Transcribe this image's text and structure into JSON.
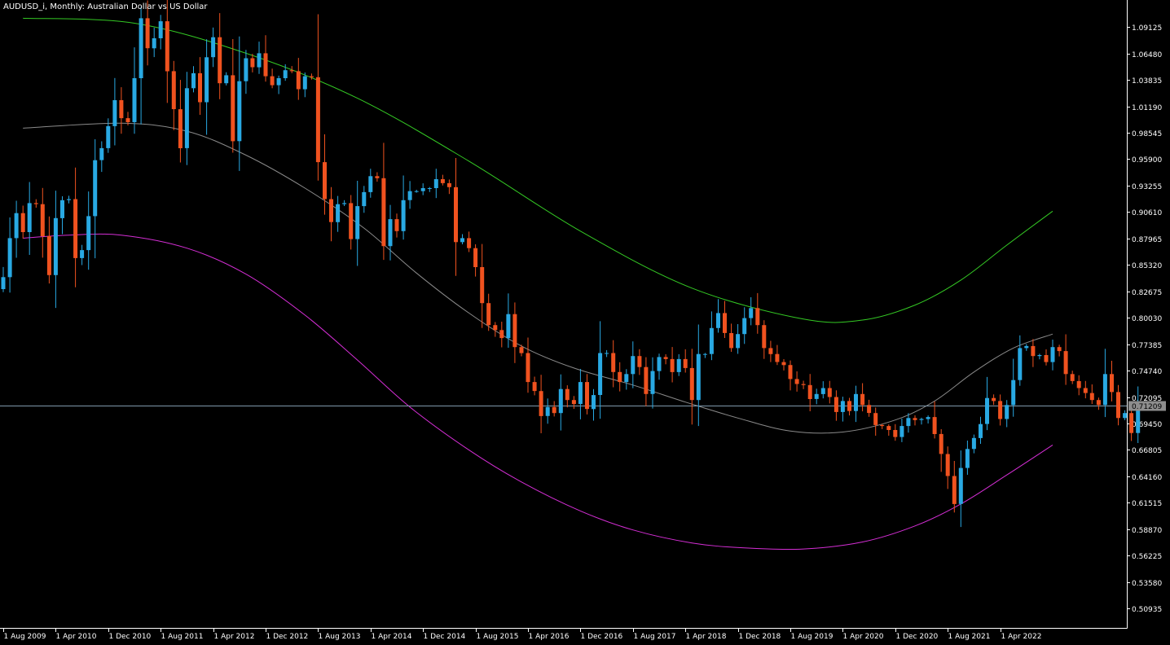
{
  "chart_title": "AUDUSD_i, Monthly:  Australian Dollar vs US Dollar",
  "colors": {
    "background": "#000000",
    "axis": "#ffffff",
    "bull_candle": "#29a9e3",
    "bear_candle": "#f0521f",
    "upper_band": "#34c924",
    "middle_band": "#8a8a8a",
    "lower_band": "#d42ed4",
    "price_line": "#7f98ab",
    "price_tag_bg": "#8d8d8d"
  },
  "chart_data": {
    "type": "candlestick",
    "symbol": "AUDUSD_i",
    "timeframe": "Monthly",
    "ylim": [
      0.49,
      1.115
    ],
    "price_ticks": [
      "1.09125",
      "1.06480",
      "1.03835",
      "1.01190",
      "0.98545",
      "0.95900",
      "0.93255",
      "0.90610",
      "0.87965",
      "0.85320",
      "0.82675",
      "0.80030",
      "0.77385",
      "0.74740",
      "0.72095",
      "0.69450",
      "0.66805",
      "0.64160",
      "0.61515",
      "0.58870",
      "0.56225",
      "0.53580",
      "0.50935"
    ],
    "current_price": "0.71209",
    "date_ticks": [
      {
        "i": 0,
        "label": "1 Aug 2009"
      },
      {
        "i": 8,
        "label": "1 Apr 2010"
      },
      {
        "i": 16,
        "label": "1 Dec 2010"
      },
      {
        "i": 24,
        "label": "1 Aug 2011"
      },
      {
        "i": 32,
        "label": "1 Apr 2012"
      },
      {
        "i": 40,
        "label": "1 Dec 2012"
      },
      {
        "i": 48,
        "label": "1 Aug 2013"
      },
      {
        "i": 56,
        "label": "1 Apr 2014"
      },
      {
        "i": 64,
        "label": "1 Dec 2014"
      },
      {
        "i": 72,
        "label": "1 Aug 2015"
      },
      {
        "i": 80,
        "label": "1 Apr 2016"
      },
      {
        "i": 88,
        "label": "1 Dec 2016"
      },
      {
        "i": 96,
        "label": "1 Aug 2017"
      },
      {
        "i": 104,
        "label": "1 Apr 2018"
      },
      {
        "i": 112,
        "label": "1 Dec 2018"
      },
      {
        "i": 120,
        "label": "1 Aug 2019"
      },
      {
        "i": 128,
        "label": "1 Apr 2020"
      },
      {
        "i": 136,
        "label": "1 Dec 2020"
      },
      {
        "i": 144,
        "label": "1 Aug 2021"
      },
      {
        "i": 152,
        "label": "1 Apr 2022"
      }
    ],
    "closes": [
      0.841,
      0.88,
      0.905,
      0.886,
      0.915,
      0.914,
      0.882,
      0.843,
      0.9,
      0.918,
      0.919,
      0.86,
      0.868,
      0.902,
      0.958,
      0.97,
      0.992,
      1.018,
      1.0,
      0.996,
      1.04,
      1.1,
      1.07,
      1.08,
      1.097,
      1.047,
      1.009,
      0.97,
      1.03,
      1.045,
      1.016,
      1.061,
      1.081,
      1.035,
      1.043,
      0.977,
      1.037,
      1.06,
      1.051,
      1.065,
      1.042,
      1.033,
      1.04,
      1.048,
      1.047,
      1.029,
      1.042,
      1.041,
      0.956,
      0.919,
      0.896,
      0.914,
      0.915,
      0.879,
      0.912,
      0.926,
      0.942,
      0.94,
      0.872,
      0.899,
      0.887,
      0.918,
      0.927,
      0.927,
      0.93,
      0.93,
      0.939,
      0.935,
      0.931,
      0.876,
      0.88,
      0.87,
      0.851,
      0.815,
      0.793,
      0.788,
      0.78,
      0.804,
      0.771,
      0.765,
      0.736,
      0.727,
      0.702,
      0.711,
      0.705,
      0.729,
      0.718,
      0.714,
      0.736,
      0.709,
      0.723,
      0.765,
      0.765,
      0.746,
      0.736,
      0.744,
      0.762,
      0.751,
      0.724,
      0.747,
      0.761,
      0.759,
      0.746,
      0.759,
      0.75,
      0.718,
      0.764,
      0.764,
      0.79,
      0.805,
      0.785,
      0.77,
      0.784,
      0.8,
      0.81,
      0.793,
      0.77,
      0.764,
      0.756,
      0.753,
      0.739,
      0.734,
      0.733,
      0.719,
      0.724,
      0.73,
      0.721,
      0.706,
      0.717,
      0.707,
      0.724,
      0.713,
      0.705,
      0.693,
      0.692,
      0.688,
      0.681,
      0.692,
      0.7,
      0.698,
      0.699,
      0.701,
      0.684,
      0.664,
      0.642,
      0.614,
      0.65,
      0.669,
      0.68,
      0.694,
      0.72,
      0.717,
      0.699,
      0.713,
      0.738,
      0.77,
      0.772,
      0.762,
      0.763,
      0.756,
      0.771,
      0.767,
      0.744,
      0.737,
      0.73,
      0.725,
      0.718,
      0.713,
      0.744,
      0.726,
      0.7,
      0.705,
      0.685,
      0.712
    ],
    "bands": {
      "upper": [
        {
          "i": 3,
          "v": 1.1
        },
        {
          "i": 20,
          "v": 1.095
        },
        {
          "i": 37,
          "v": 1.065
        },
        {
          "i": 54,
          "v": 1.02
        },
        {
          "i": 71,
          "v": 0.957
        },
        {
          "i": 88,
          "v": 0.887
        },
        {
          "i": 105,
          "v": 0.83
        },
        {
          "i": 122,
          "v": 0.799
        },
        {
          "i": 131,
          "v": 0.798
        },
        {
          "i": 139,
          "v": 0.813
        },
        {
          "i": 146,
          "v": 0.838
        },
        {
          "i": 153,
          "v": 0.873
        },
        {
          "i": 160,
          "v": 0.907
        }
      ],
      "middle": [
        {
          "i": 3,
          "v": 0.99
        },
        {
          "i": 18,
          "v": 0.995
        },
        {
          "i": 28,
          "v": 0.987
        },
        {
          "i": 37,
          "v": 0.963
        },
        {
          "i": 46,
          "v": 0.93
        },
        {
          "i": 55,
          "v": 0.89
        },
        {
          "i": 63,
          "v": 0.845
        },
        {
          "i": 71,
          "v": 0.805
        },
        {
          "i": 79,
          "v": 0.772
        },
        {
          "i": 87,
          "v": 0.75
        },
        {
          "i": 96,
          "v": 0.733
        },
        {
          "i": 104,
          "v": 0.716
        },
        {
          "i": 112,
          "v": 0.7
        },
        {
          "i": 120,
          "v": 0.687
        },
        {
          "i": 128,
          "v": 0.686
        },
        {
          "i": 136,
          "v": 0.698
        },
        {
          "i": 142,
          "v": 0.717
        },
        {
          "i": 148,
          "v": 0.746
        },
        {
          "i": 154,
          "v": 0.77
        },
        {
          "i": 160,
          "v": 0.784
        }
      ],
      "lower": [
        {
          "i": 3,
          "v": 0.88
        },
        {
          "i": 10,
          "v": 0.883
        },
        {
          "i": 18,
          "v": 0.883
        },
        {
          "i": 28,
          "v": 0.87
        },
        {
          "i": 37,
          "v": 0.844
        },
        {
          "i": 46,
          "v": 0.803
        },
        {
          "i": 54,
          "v": 0.758
        },
        {
          "i": 62,
          "v": 0.711
        },
        {
          "i": 71,
          "v": 0.668
        },
        {
          "i": 79,
          "v": 0.636
        },
        {
          "i": 88,
          "v": 0.607
        },
        {
          "i": 96,
          "v": 0.588
        },
        {
          "i": 105,
          "v": 0.575
        },
        {
          "i": 113,
          "v": 0.57
        },
        {
          "i": 122,
          "v": 0.569
        },
        {
          "i": 131,
          "v": 0.576
        },
        {
          "i": 139,
          "v": 0.592
        },
        {
          "i": 146,
          "v": 0.614
        },
        {
          "i": 153,
          "v": 0.643
        },
        {
          "i": 160,
          "v": 0.673
        }
      ]
    }
  }
}
